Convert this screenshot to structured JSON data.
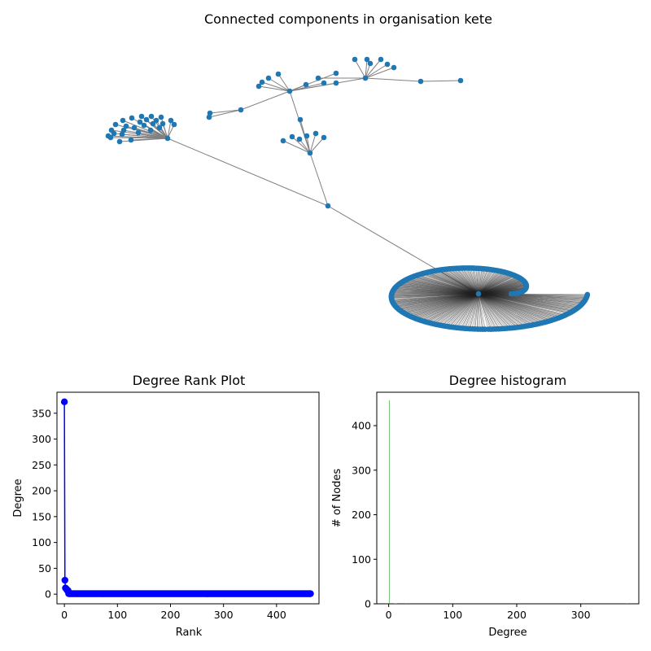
{
  "chart_data": [
    {
      "type": "network",
      "title": "Connected components in organisation kete",
      "node_color": "#1f77b4",
      "edge_color": "#808080",
      "node_count": 465,
      "max_degree": 372
    },
    {
      "type": "line",
      "title": "Degree Rank Plot",
      "xlabel": "Rank",
      "ylabel": "Degree",
      "marker_color": "#0000ff",
      "xlim": [
        -14,
        480
      ],
      "ylim": [
        -18.6,
        390.6
      ],
      "xticks": [
        "0",
        "100",
        "200",
        "300",
        "400"
      ],
      "yticks": [
        "0",
        "50",
        "100",
        "150",
        "200",
        "250",
        "300",
        "350"
      ],
      "series": [
        {
          "x": [
            0,
            1,
            2,
            3,
            4,
            5,
            6,
            7
          ],
          "y": [
            372,
            27,
            12,
            11,
            10,
            8,
            7,
            7
          ]
        },
        {
          "x_range": [
            8,
            464
          ],
          "y": 1
        }
      ]
    },
    {
      "type": "bar",
      "title": "Degree histogram",
      "xlabel": "Degree",
      "ylabel": "# of Nodes",
      "bar_color": "#2ca02c",
      "xlim": [
        -18.6,
        390.6
      ],
      "ylim": [
        0,
        475
      ],
      "xticks": [
        "0",
        "100",
        "200",
        "300"
      ],
      "yticks": [
        "0",
        "100",
        "200",
        "300",
        "400"
      ],
      "bars": [
        {
          "degree": 1,
          "count": 457
        },
        {
          "degree": 7,
          "count": 2
        },
        {
          "degree": 8,
          "count": 1
        },
        {
          "degree": 10,
          "count": 1
        },
        {
          "degree": 11,
          "count": 1
        },
        {
          "degree": 12,
          "count": 1
        },
        {
          "degree": 27,
          "count": 1
        },
        {
          "degree": 372,
          "count": 1
        }
      ]
    }
  ]
}
